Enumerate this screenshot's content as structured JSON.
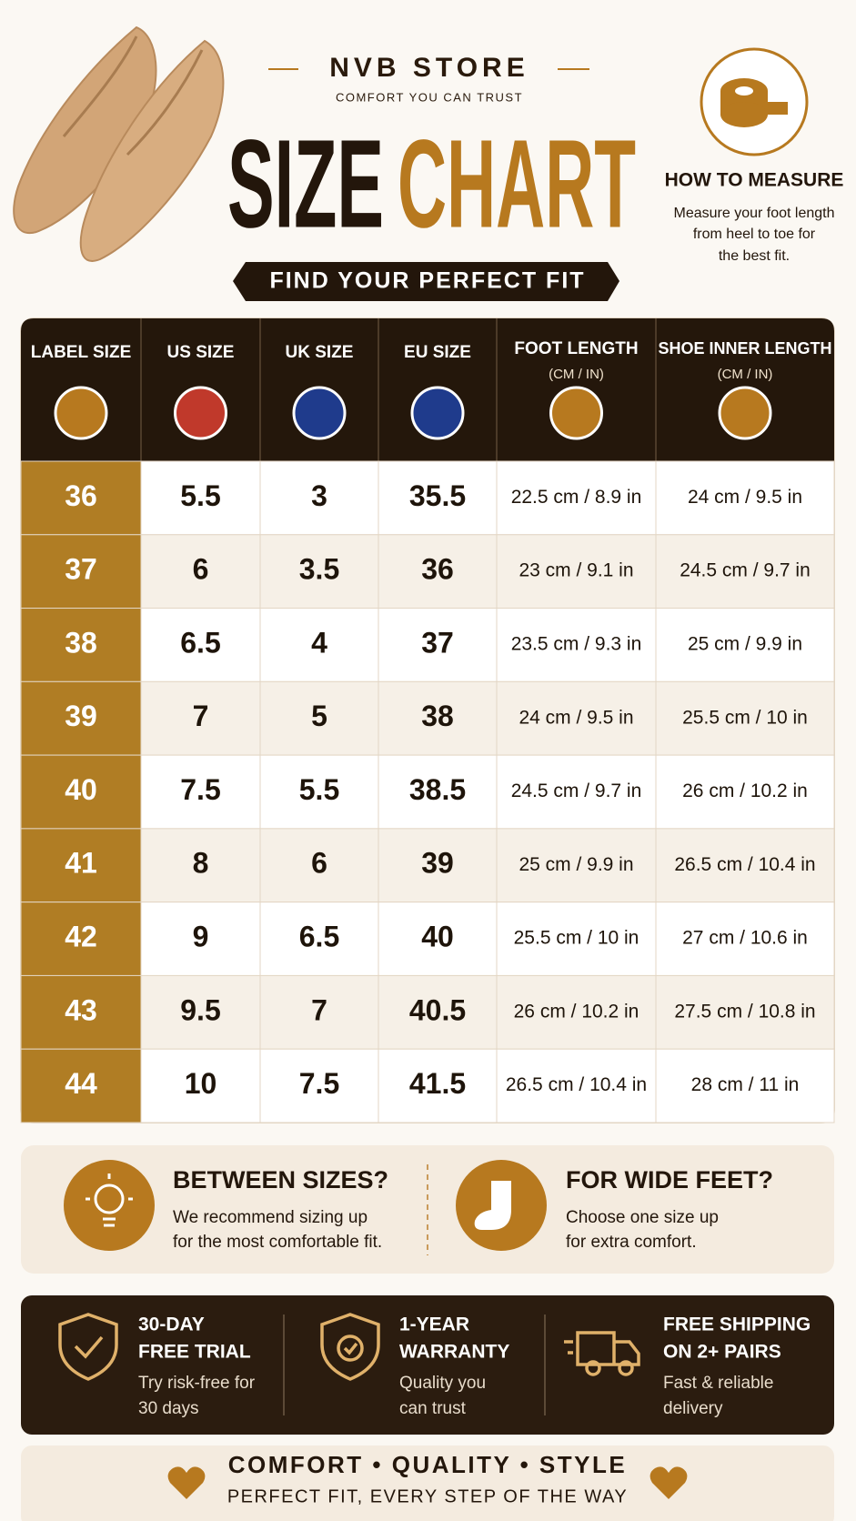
{
  "header": {
    "brand": "NVB STORE",
    "tagline": "COMFORT YOU CAN TRUST",
    "title_part1": "SIZE",
    "title_part2": "CHART",
    "banner": "FIND YOUR PERFECT FIT"
  },
  "how_to_measure": {
    "title": "HOW TO MEASURE",
    "lines": [
      "Measure your foot length",
      "from heel to toe for",
      "the best fit."
    ]
  },
  "table": {
    "columns": [
      {
        "label": "LABEL SIZE"
      },
      {
        "label": "US SIZE"
      },
      {
        "label": "UK SIZE"
      },
      {
        "label": "EU SIZE"
      },
      {
        "label": "FOOT LENGTH",
        "sub": "(CM / IN)"
      },
      {
        "label": "SHOE INNER LENGTH",
        "sub": "(CM / IN)"
      }
    ],
    "rows": [
      [
        "36",
        "5.5",
        "3",
        "35.5",
        "22.5 cm / 8.9 in",
        "24 cm / 9.5 in"
      ],
      [
        "37",
        "6",
        "3.5",
        "36",
        "23 cm / 9.1 in",
        "24.5 cm / 9.7 in"
      ],
      [
        "38",
        "6.5",
        "4",
        "37",
        "23.5 cm / 9.3 in",
        "25 cm / 9.9 in"
      ],
      [
        "39",
        "7",
        "5",
        "38",
        "24 cm / 9.5 in",
        "25.5 cm / 10 in"
      ],
      [
        "40",
        "7.5",
        "5.5",
        "38.5",
        "24.5 cm / 9.7 in",
        "26 cm / 10.2 in"
      ],
      [
        "41",
        "8",
        "6",
        "39",
        "25 cm / 9.9 in",
        "26.5 cm / 10.4 in"
      ],
      [
        "42",
        "9",
        "6.5",
        "40",
        "25.5 cm / 10 in",
        "27 cm / 10.6 in"
      ],
      [
        "43",
        "9.5",
        "7",
        "40.5",
        "26 cm / 10.2 in",
        "27.5 cm / 10.8 in"
      ],
      [
        "44",
        "10",
        "7.5",
        "41.5",
        "26.5 cm / 10.4 in",
        "28 cm / 11 in"
      ]
    ]
  },
  "tips": [
    {
      "title": "BETWEEN SIZES?",
      "lines": [
        "We recommend sizing up",
        "for the most comfortable fit."
      ]
    },
    {
      "title": "FOR WIDE FEET?",
      "lines": [
        "Choose one size up",
        "for extra comfort."
      ]
    }
  ],
  "features": [
    {
      "title_lines": [
        "30-DAY",
        "FREE TRIAL"
      ],
      "lines": [
        "Try risk-free for",
        "30 days"
      ]
    },
    {
      "title_lines": [
        "1-YEAR",
        "WARRANTY"
      ],
      "lines": [
        "Quality you",
        "can trust"
      ]
    },
    {
      "title_lines": [
        "FREE SHIPPING",
        "ON 2+ PAIRS"
      ],
      "lines": [
        "Fast & reliable",
        "delivery"
      ]
    }
  ],
  "footer": {
    "motto": "COMFORT • QUALITY • STYLE",
    "tagline": "PERFECT FIT, EVERY STEP OF THE WAY"
  }
}
